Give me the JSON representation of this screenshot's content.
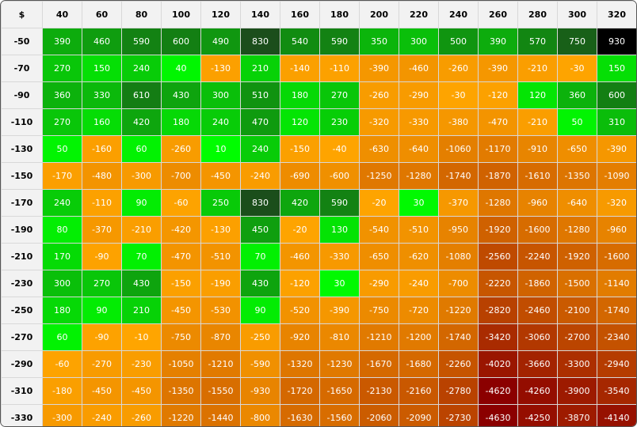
{
  "chart_data": {
    "type": "heatmap",
    "corner_label": "$",
    "x": [
      "40",
      "60",
      "80",
      "100",
      "120",
      "140",
      "160",
      "180",
      "200",
      "220",
      "240",
      "260",
      "280",
      "300",
      "320"
    ],
    "y": [
      "-50",
      "-70",
      "-90",
      "-110",
      "-130",
      "-150",
      "-170",
      "-190",
      "-210",
      "-230",
      "-250",
      "-270",
      "-290",
      "-310",
      "-330"
    ],
    "values": [
      [
        390,
        460,
        590,
        600,
        490,
        830,
        540,
        590,
        350,
        300,
        500,
        390,
        570,
        750,
        930
      ],
      [
        270,
        150,
        240,
        40,
        -130,
        210,
        -140,
        -110,
        -390,
        -460,
        -260,
        -390,
        -210,
        -30,
        150
      ],
      [
        360,
        330,
        610,
        430,
        300,
        510,
        180,
        270,
        -260,
        -290,
        -30,
        -120,
        120,
        360,
        600
      ],
      [
        270,
        160,
        420,
        180,
        240,
        470,
        120,
        230,
        -320,
        -330,
        -380,
        -470,
        -210,
        50,
        310
      ],
      [
        50,
        -160,
        60,
        -260,
        10,
        240,
        -150,
        -40,
        -630,
        -640,
        -1060,
        -1170,
        -910,
        -650,
        -390
      ],
      [
        -170,
        -480,
        -300,
        -700,
        -450,
        -240,
        -690,
        -600,
        -1250,
        -1280,
        -1740,
        -1870,
        -1610,
        -1350,
        -1090
      ],
      [
        240,
        -110,
        90,
        -60,
        250,
        830,
        420,
        590,
        -20,
        30,
        -370,
        -1280,
        -960,
        -640,
        -320
      ],
      [
        80,
        -370,
        -210,
        -420,
        -130,
        450,
        -20,
        130,
        -540,
        -510,
        -950,
        -1920,
        -1600,
        -1280,
        -960
      ],
      [
        170,
        -90,
        70,
        -470,
        -510,
        70,
        -460,
        -330,
        -650,
        -620,
        -1080,
        -2560,
        -2240,
        -1920,
        -1600
      ],
      [
        300,
        270,
        430,
        -150,
        -190,
        430,
        -120,
        30,
        -290,
        -240,
        -700,
        -2220,
        -1860,
        -1500,
        -1140
      ],
      [
        180,
        90,
        210,
        -450,
        -530,
        90,
        -520,
        -390,
        -750,
        -720,
        -1220,
        -2820,
        -2460,
        -2100,
        -1740
      ],
      [
        60,
        -90,
        -10,
        -750,
        -870,
        -250,
        -920,
        -810,
        -1210,
        -1200,
        -1740,
        -3420,
        -3060,
        -2700,
        -2340
      ],
      [
        -60,
        -270,
        -230,
        -1050,
        -1210,
        -590,
        -1320,
        -1230,
        -1670,
        -1680,
        -2260,
        -4020,
        -3660,
        -3300,
        -2940
      ],
      [
        -180,
        -450,
        -450,
        -1350,
        -1550,
        -930,
        -1720,
        -1650,
        -2130,
        -2160,
        -2780,
        -4620,
        -4260,
        -3900,
        -3540
      ],
      [
        -300,
        -240,
        -260,
        -1220,
        -1440,
        -800,
        -1630,
        -1560,
        -2060,
        -2090,
        -2730,
        -4630,
        -4250,
        -3870,
        -4140
      ]
    ],
    "colors": {
      "positive_low": "#00ff00",
      "positive_high": "#1b4d1b",
      "positive_max": "#000000",
      "negative_low": "#ffa500",
      "negative_high": "#8b0000",
      "header_bg": "#f2f2f2",
      "grid": "#d8d8d8",
      "cell_text": "#ffffff"
    }
  }
}
